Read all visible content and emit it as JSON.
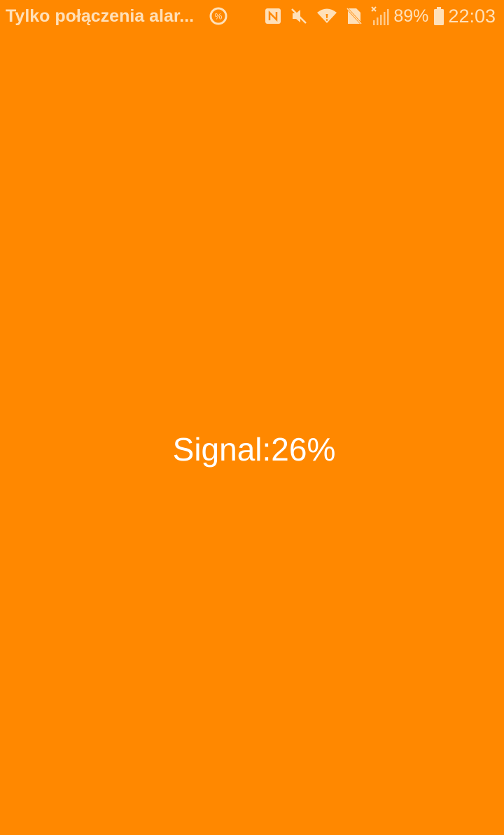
{
  "status_bar": {
    "carrier_text": "Tylko połączenia alar...",
    "battery_percent": "89%",
    "time": "22:03",
    "icons": [
      "sale-percent-icon",
      "nfc-icon",
      "mute-icon",
      "wifi-icon",
      "no-sim-icon",
      "signal-no-service-icon",
      "battery-icon"
    ],
    "icon_color": "#FFE0B8"
  },
  "main": {
    "signal_label": "Signal:26%",
    "background_color": "#FF8800",
    "text_color": "#FFFFFF"
  }
}
